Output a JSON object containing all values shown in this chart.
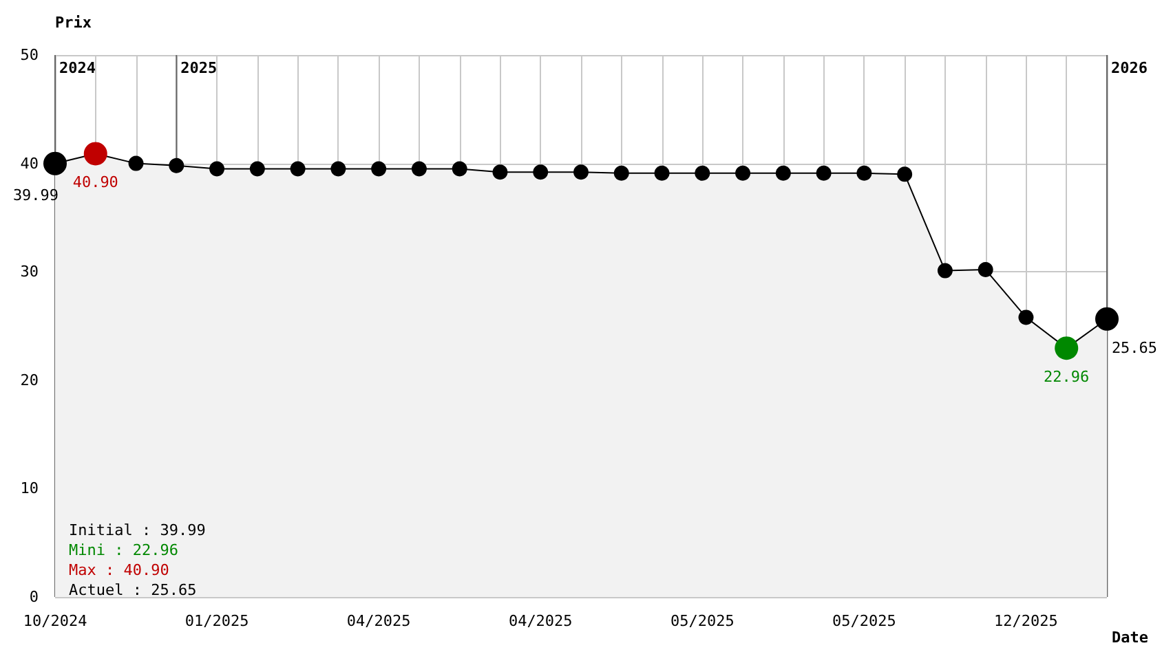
{
  "chart_data": {
    "type": "area",
    "xlabel": "Date",
    "ylabel": "Prix",
    "categories": [
      "10/2024",
      null,
      null,
      null,
      "01/2025",
      null,
      null,
      null,
      "04/2025",
      null,
      null,
      null,
      "04/2025",
      null,
      null,
      null,
      "05/2025",
      null,
      null,
      null,
      "05/2025",
      null,
      null,
      null,
      "12/2025",
      null,
      null
    ],
    "values": [
      39.99,
      40.9,
      40.0,
      39.8,
      39.5,
      39.5,
      39.5,
      39.5,
      39.5,
      39.5,
      39.5,
      39.2,
      39.2,
      39.2,
      39.1,
      39.1,
      39.1,
      39.1,
      39.1,
      39.1,
      39.1,
      39.0,
      30.1,
      30.2,
      25.8,
      22.96,
      25.65
    ],
    "value_labels": [
      "39.99",
      "40.90",
      null,
      null,
      null,
      null,
      null,
      null,
      null,
      null,
      null,
      null,
      null,
      null,
      null,
      null,
      null,
      null,
      null,
      null,
      null,
      null,
      null,
      null,
      null,
      "22.96",
      "25.65"
    ],
    "color": "#000000",
    "colors": [
      "#000000",
      "#c00000",
      "#000000",
      "#000000",
      "#000000",
      "#000000",
      "#000000",
      "#000000",
      "#000000",
      "#000000",
      "#000000",
      "#000000",
      "#000000",
      "#000000",
      "#000000",
      "#000000",
      "#000000",
      "#000000",
      "#000000",
      "#000000",
      "#000000",
      "#000000",
      "#000000",
      "#000000",
      "#000000",
      "#008800",
      "#000000"
    ],
    "ylim": [
      0,
      50
    ],
    "yticks": [
      0,
      10,
      20,
      30,
      40,
      50
    ],
    "grid": true,
    "marker": "circle",
    "line_style": "solid",
    "annotations": [
      "Initial : 39.99",
      "Mini : 22.96",
      "Max : 40.90",
      "Actuel : 25.65",
      "2024",
      "2025",
      "2026"
    ]
  }
}
